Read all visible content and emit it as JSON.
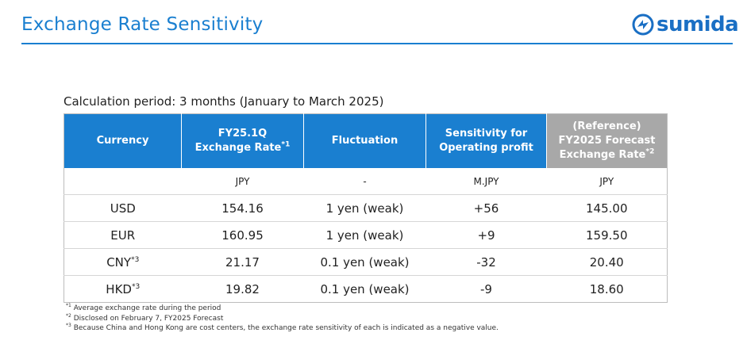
{
  "header": {
    "title": "Exchange Rate Sensitivity",
    "logo_text": "sumida"
  },
  "calc_period": "Calculation period: 3 months (January to March 2025)",
  "table": {
    "headers": {
      "currency": "Currency",
      "fy_line1": "FY25.1Q",
      "fy_line2": "Exchange Rate",
      "fy_sup": "*1",
      "fluctuation": "Fluctuation",
      "sens_line1": "Sensitivity for",
      "sens_line2": "Operating profit",
      "ref_line1": "(Reference)",
      "ref_line2": "FY2025 Forecast",
      "ref_line3": "Exchange Rate",
      "ref_sup": "*2"
    },
    "units": [
      "",
      "JPY",
      "-",
      "M.JPY",
      "JPY"
    ],
    "rows": [
      {
        "currency": "USD",
        "sup": "",
        "rate": "154.16",
        "fluctuation": "1 yen (weak)",
        "sensitivity": "+56",
        "forecast": "145.00"
      },
      {
        "currency": "EUR",
        "sup": "",
        "rate": "160.95",
        "fluctuation": "1 yen (weak)",
        "sensitivity": "+9",
        "forecast": "159.50"
      },
      {
        "currency": "CNY",
        "sup": "*3",
        "rate": "21.17",
        "fluctuation": "0.1 yen (weak)",
        "sensitivity": "-32",
        "forecast": "20.40"
      },
      {
        "currency": "HKD",
        "sup": "*3",
        "rate": "19.82",
        "fluctuation": "0.1 yen (weak)",
        "sensitivity": "-9",
        "forecast": "18.60"
      }
    ]
  },
  "notes": [
    {
      "mark": "*1",
      "text": "Average exchange rate during the period"
    },
    {
      "mark": "*2",
      "text": "Disclosed on February 7, FY2025 Forecast"
    },
    {
      "mark": "*3",
      "text": "Because China and Hong Kong are cost centers, the exchange rate sensitivity of each is indicated as a negative value."
    }
  ],
  "colors": {
    "accent": "#1a7fd0",
    "reference_header": "#a8a8a8"
  }
}
